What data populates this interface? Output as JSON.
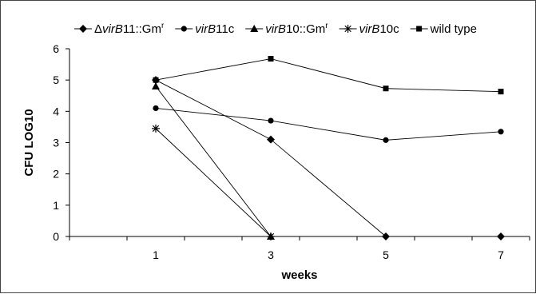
{
  "chart_data": {
    "type": "line",
    "xlabel": "weeks",
    "ylabel": "CFU LOG10",
    "x": [
      1,
      3,
      5,
      7
    ],
    "ylim": [
      0,
      6
    ],
    "yticks": [
      0,
      1,
      2,
      3,
      4,
      5,
      6
    ],
    "grid": false,
    "legend_position": "top",
    "series": [
      {
        "name": "ΔvirB11::Gmr",
        "legend_parts": [
          {
            "text": "Δ",
            "style": "normal"
          },
          {
            "text": "virB",
            "style": "italic"
          },
          {
            "text": "11::Gm",
            "style": "normal"
          },
          {
            "text": "r",
            "style": "sup"
          }
        ],
        "marker": "diamond",
        "points": [
          [
            1,
            5.0
          ],
          [
            3,
            3.1
          ],
          [
            5,
            0
          ],
          [
            7,
            0
          ]
        ]
      },
      {
        "name": "virB11c",
        "legend_parts": [
          {
            "text": "virB",
            "style": "italic"
          },
          {
            "text": "11c",
            "style": "normal"
          }
        ],
        "marker": "circle",
        "points": [
          [
            1,
            4.1
          ],
          [
            3,
            3.7
          ],
          [
            5,
            3.08
          ],
          [
            7,
            3.35
          ]
        ]
      },
      {
        "name": "virB10::Gmr",
        "legend_parts": [
          {
            "text": "virB",
            "style": "italic"
          },
          {
            "text": "10::Gm",
            "style": "normal"
          },
          {
            "text": "r",
            "style": "sup"
          }
        ],
        "marker": "triangle",
        "points": [
          [
            1,
            4.8
          ],
          [
            3,
            0
          ]
        ]
      },
      {
        "name": "virB10c",
        "legend_parts": [
          {
            "text": "virB",
            "style": "italic"
          },
          {
            "text": "10c",
            "style": "normal"
          }
        ],
        "marker": "star",
        "points": [
          [
            1,
            3.45
          ],
          [
            3,
            0
          ]
        ]
      },
      {
        "name": "wild type",
        "legend_parts": [
          {
            "text": "wild type",
            "style": "normal"
          }
        ],
        "marker": "square",
        "points": [
          [
            1,
            5.0
          ],
          [
            3,
            5.68
          ],
          [
            5,
            4.73
          ],
          [
            7,
            4.63
          ]
        ]
      }
    ]
  }
}
